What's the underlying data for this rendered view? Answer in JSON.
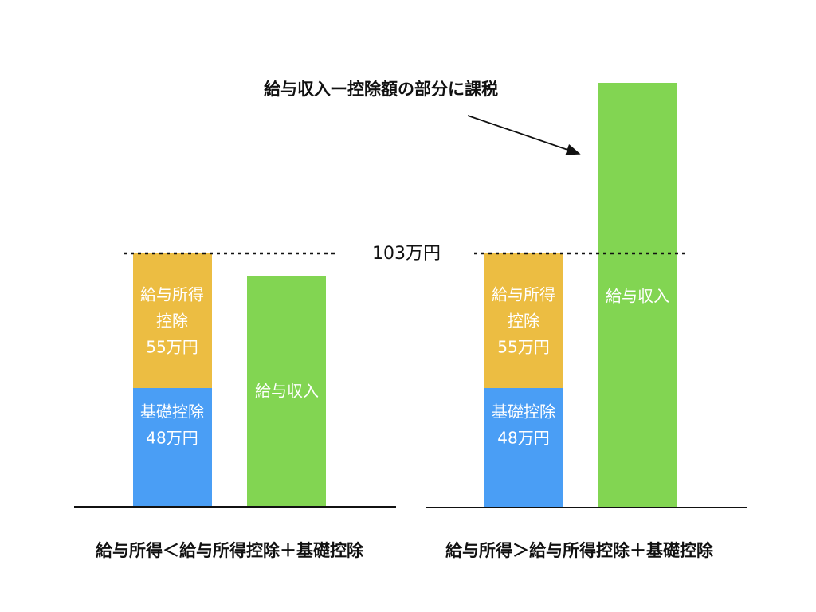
{
  "annotation": "給与収入ー控除額の部分に課税",
  "threshold_label": "103万円",
  "left_panel": {
    "deduction_label": [
      "給与所得",
      "控除",
      "55万円"
    ],
    "basic_label": [
      "基礎控除",
      "48万円"
    ],
    "income_label": "給与収入",
    "caption": "給与所得＜給与所得控除＋基礎控除"
  },
  "right_panel": {
    "deduction_label": [
      "給与所得",
      "控除",
      "55万円"
    ],
    "basic_label": [
      "基礎控除",
      "48万円"
    ],
    "income_label": "給与収入",
    "caption": "給与所得＞給与所得控除＋基礎控除"
  }
}
